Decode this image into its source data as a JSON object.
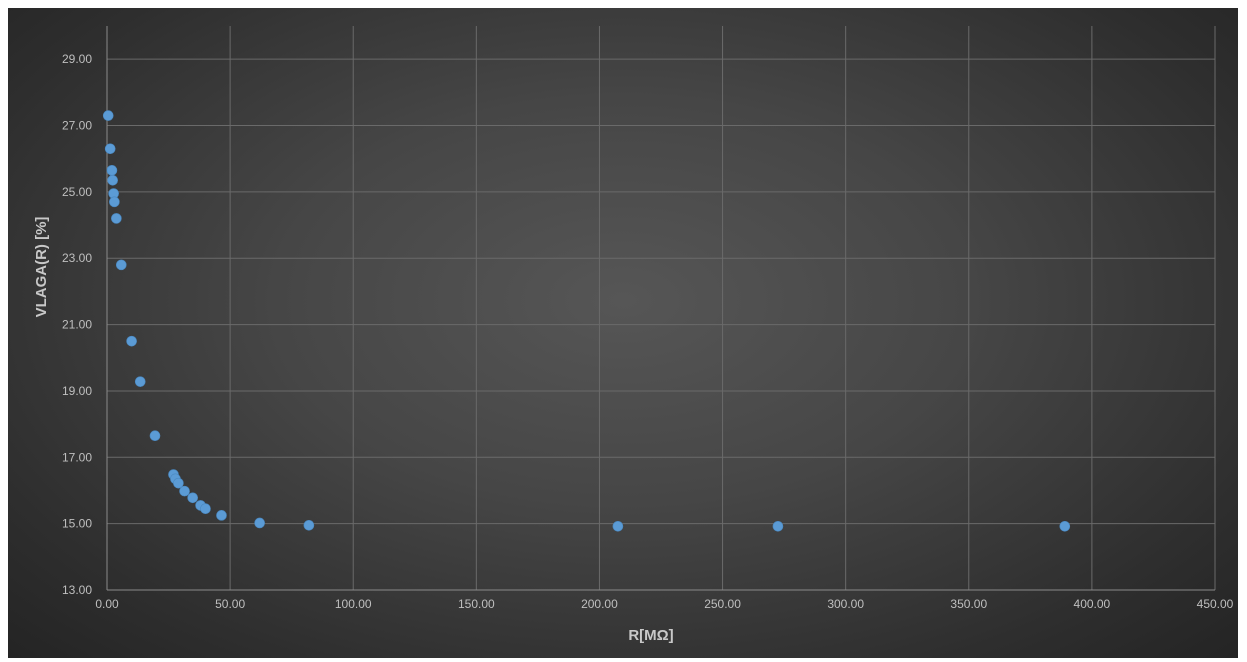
{
  "chart_data": {
    "type": "scatter",
    "title": "",
    "xlabel": "R[MΩ]",
    "ylabel": "VLAGA(R) [%]",
    "xlim": [
      0,
      450
    ],
    "ylim": [
      13,
      30
    ],
    "x_ticks": [
      0,
      50,
      100,
      150,
      200,
      250,
      300,
      350,
      400,
      450
    ],
    "x_tick_labels": [
      "0.00",
      "50.00",
      "100.00",
      "150.00",
      "200.00",
      "250.00",
      "300.00",
      "350.00",
      "400.00",
      "450.00"
    ],
    "y_ticks": [
      13,
      15,
      17,
      19,
      21,
      23,
      25,
      27,
      29
    ],
    "y_tick_labels": [
      "13.00",
      "15.00",
      "17.00",
      "19.00",
      "21.00",
      "23.00",
      "25.00",
      "27.00",
      "29.00"
    ],
    "grid": true,
    "legend": "none",
    "series": [
      {
        "color": "#5b9bd5",
        "points": [
          {
            "x": 0.5,
            "y": 27.3
          },
          {
            "x": 1.3,
            "y": 26.3
          },
          {
            "x": 2.0,
            "y": 25.65
          },
          {
            "x": 2.3,
            "y": 25.35
          },
          {
            "x": 2.7,
            "y": 24.95
          },
          {
            "x": 3.0,
            "y": 24.7
          },
          {
            "x": 3.8,
            "y": 24.2
          },
          {
            "x": 5.8,
            "y": 22.8
          },
          {
            "x": 10.0,
            "y": 20.5
          },
          {
            "x": 13.5,
            "y": 19.28
          },
          {
            "x": 19.5,
            "y": 17.65
          },
          {
            "x": 27.0,
            "y": 16.48
          },
          {
            "x": 27.8,
            "y": 16.35
          },
          {
            "x": 29.0,
            "y": 16.22
          },
          {
            "x": 31.5,
            "y": 15.98
          },
          {
            "x": 34.8,
            "y": 15.78
          },
          {
            "x": 38.0,
            "y": 15.55
          },
          {
            "x": 40.0,
            "y": 15.45
          },
          {
            "x": 46.5,
            "y": 15.25
          },
          {
            "x": 62.0,
            "y": 15.02
          },
          {
            "x": 82.0,
            "y": 14.95
          },
          {
            "x": 207.5,
            "y": 14.92
          },
          {
            "x": 272.5,
            "y": 14.92
          },
          {
            "x": 389.0,
            "y": 14.92
          }
        ]
      }
    ]
  }
}
